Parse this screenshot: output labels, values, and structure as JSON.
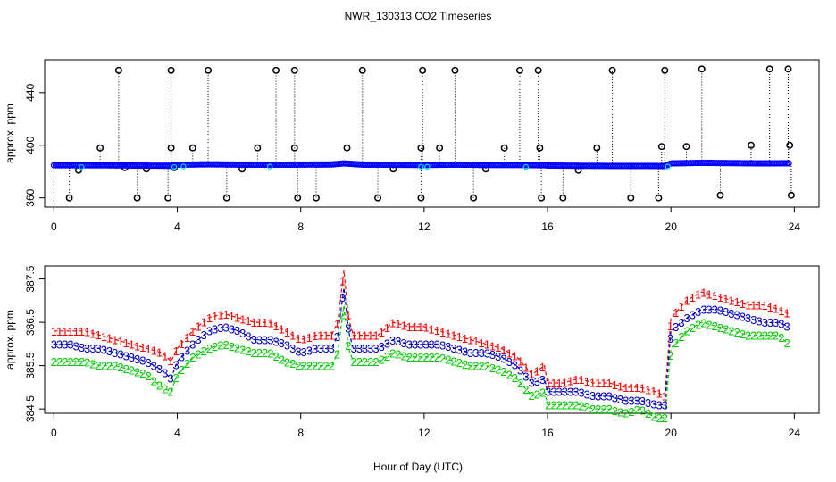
{
  "title": "NWR_130313  CO2 Timeseries",
  "xlabel": "Hour of Day (UTC)",
  "colors": {
    "series1": "#ff0000",
    "series2": "#00cc00",
    "series3": "#0000cc",
    "points": "#0000ff",
    "cyan": "#00e5ee",
    "axis": "#000000"
  },
  "chart_data": [
    {
      "type": "scatter",
      "panel": "top",
      "title": "",
      "ylabel": "approx. ppm",
      "xlim": [
        -0.3,
        24.8
      ],
      "ylim": [
        353,
        465
      ],
      "xticks": [
        0,
        4,
        8,
        12,
        16,
        20,
        24
      ],
      "xtick_labels": [
        "0",
        "4",
        "8",
        "12",
        "16",
        "20",
        "24"
      ],
      "yticks": [
        360,
        400,
        440
      ],
      "ytick_labels": [
        "360",
        "400",
        "440"
      ],
      "baseline": [
        [
          0,
          384.8
        ],
        [
          1,
          384.8
        ],
        [
          2,
          384.7
        ],
        [
          3,
          384.5
        ],
        [
          3.8,
          384.4
        ],
        [
          4,
          385.2
        ],
        [
          5,
          385.5
        ],
        [
          6,
          385.3
        ],
        [
          7,
          385.2
        ],
        [
          8,
          385.3
        ],
        [
          9,
          385.4
        ],
        [
          9.4,
          386.2
        ],
        [
          10,
          385.3
        ],
        [
          11,
          385.2
        ],
        [
          12,
          385.0
        ],
        [
          13,
          385.3
        ],
        [
          14,
          385.0
        ],
        [
          15,
          385.0
        ],
        [
          15.9,
          384.8
        ],
        [
          16,
          384.6
        ],
        [
          17,
          384.4
        ],
        [
          18,
          384.3
        ],
        [
          19,
          384.3
        ],
        [
          19.8,
          384.2
        ],
        [
          20,
          386.2
        ],
        [
          21,
          386.6
        ],
        [
          22,
          386.4
        ],
        [
          23,
          386.2
        ],
        [
          23.8,
          386.3
        ]
      ],
      "spikes": [
        [
          0.5,
          360
        ],
        [
          0.8,
          381
        ],
        [
          1.5,
          398
        ],
        [
          2.1,
          457
        ],
        [
          2.3,
          383
        ],
        [
          2.7,
          360
        ],
        [
          3.0,
          382
        ],
        [
          3.7,
          360
        ],
        [
          3.8,
          457
        ],
        [
          3.8,
          398
        ],
        [
          3.9,
          383
        ],
        [
          4.5,
          398
        ],
        [
          5.0,
          457
        ],
        [
          5.6,
          360
        ],
        [
          6.1,
          382
        ],
        [
          6.6,
          398
        ],
        [
          7.2,
          457
        ],
        [
          7.8,
          457
        ],
        [
          7.8,
          398
        ],
        [
          7.9,
          360
        ],
        [
          8.5,
          360
        ],
        [
          9.5,
          398
        ],
        [
          10.0,
          457
        ],
        [
          10.5,
          360
        ],
        [
          11.0,
          382
        ],
        [
          11.9,
          360
        ],
        [
          11.9,
          398
        ],
        [
          11.95,
          457
        ],
        [
          12.5,
          398
        ],
        [
          13.0,
          457
        ],
        [
          13.6,
          360
        ],
        [
          14.0,
          382
        ],
        [
          14.6,
          398
        ],
        [
          15.1,
          457
        ],
        [
          15.7,
          457
        ],
        [
          15.75,
          398
        ],
        [
          15.8,
          360
        ],
        [
          16.5,
          360
        ],
        [
          17.0,
          381
        ],
        [
          17.6,
          398
        ],
        [
          18.1,
          457
        ],
        [
          18.7,
          360
        ],
        [
          19.6,
          360
        ],
        [
          19.7,
          399
        ],
        [
          19.8,
          457
        ],
        [
          20.5,
          399
        ],
        [
          21.0,
          458
        ],
        [
          21.6,
          362
        ],
        [
          22.6,
          400
        ],
        [
          23.2,
          458
        ],
        [
          23.8,
          458
        ],
        [
          23.85,
          400
        ],
        [
          23.9,
          362
        ]
      ]
    },
    {
      "type": "line",
      "panel": "bottom",
      "title": "",
      "ylabel": "approx. ppm",
      "xlim": [
        -0.3,
        24.8
      ],
      "ylim": [
        384.4,
        387.8
      ],
      "xticks": [
        0,
        4,
        8,
        12,
        16,
        20,
        24
      ],
      "xtick_labels": [
        "0",
        "4",
        "8",
        "12",
        "16",
        "20",
        "24"
      ],
      "yticks": [
        384.5,
        385.5,
        386.5,
        387.5
      ],
      "ytick_labels": [
        "384.5",
        "385.5",
        "386.5",
        "387.5"
      ],
      "x": [
        0,
        0.5,
        1,
        1.5,
        2,
        2.5,
        3,
        3.5,
        3.8,
        4,
        4.5,
        5,
        5.5,
        6,
        6.5,
        7,
        7.5,
        8,
        8.5,
        9,
        9.2,
        9.4,
        9.55,
        9.7,
        10,
        10.5,
        11,
        11.5,
        12,
        12.5,
        13,
        13.5,
        14,
        14.5,
        15,
        15.5,
        15.9,
        16,
        16.5,
        17,
        17.5,
        18,
        18.5,
        19,
        19.5,
        19.8,
        20,
        20.5,
        21,
        21.5,
        22,
        22.5,
        23,
        23.5,
        23.8
      ],
      "series": [
        {
          "name": "1",
          "values": [
            386.3,
            386.3,
            386.3,
            386.2,
            386.1,
            386.0,
            385.9,
            385.8,
            385.6,
            385.9,
            386.3,
            386.6,
            386.7,
            386.6,
            386.5,
            386.5,
            386.3,
            386.1,
            386.2,
            386.2,
            386.5,
            387.7,
            386.6,
            386.2,
            386.2,
            386.2,
            386.5,
            386.4,
            386.4,
            386.3,
            386.2,
            386.1,
            386.0,
            385.9,
            385.7,
            385.3,
            385.5,
            385.1,
            385.1,
            385.2,
            385.1,
            385.1,
            385.0,
            385.0,
            384.9,
            384.8,
            386.6,
            387.0,
            387.2,
            387.1,
            387.0,
            386.9,
            386.9,
            386.8,
            386.7
          ]
        },
        {
          "name": "2",
          "values": [
            385.6,
            385.6,
            385.6,
            385.5,
            385.5,
            385.4,
            385.3,
            385.0,
            384.9,
            385.3,
            385.7,
            385.9,
            386.0,
            385.9,
            385.8,
            385.8,
            385.6,
            385.5,
            385.5,
            385.5,
            385.8,
            386.9,
            385.9,
            385.6,
            385.6,
            385.6,
            385.8,
            385.7,
            385.7,
            385.7,
            385.6,
            385.5,
            385.5,
            385.4,
            385.2,
            384.8,
            384.9,
            384.6,
            384.6,
            384.6,
            384.5,
            384.5,
            384.4,
            384.5,
            384.3,
            384.3,
            385.9,
            386.3,
            386.5,
            386.4,
            386.3,
            386.2,
            386.2,
            386.2,
            386.0
          ]
        },
        {
          "name": "3",
          "values": [
            386.0,
            386.0,
            385.9,
            385.9,
            385.8,
            385.7,
            385.6,
            385.4,
            385.2,
            385.6,
            386.0,
            386.3,
            386.4,
            386.3,
            386.1,
            386.1,
            386.0,
            385.8,
            385.9,
            385.9,
            386.2,
            387.3,
            386.3,
            385.9,
            385.9,
            385.9,
            386.1,
            386.0,
            386.0,
            386.0,
            385.9,
            385.8,
            385.8,
            385.7,
            385.5,
            385.1,
            385.2,
            384.9,
            384.9,
            384.9,
            384.8,
            384.8,
            384.7,
            384.7,
            384.6,
            384.6,
            386.3,
            386.6,
            386.8,
            386.8,
            386.7,
            386.6,
            386.5,
            386.5,
            386.4
          ]
        }
      ]
    }
  ]
}
